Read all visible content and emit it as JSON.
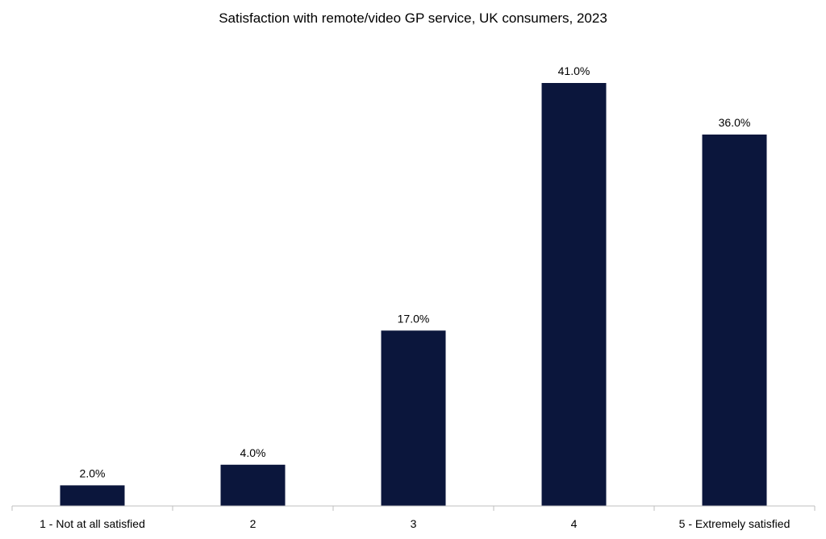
{
  "chart_data": {
    "type": "bar",
    "title": "Satisfaction with remote/video GP service, UK consumers, 2023",
    "categories": [
      "1 - Not at all satisfied",
      "2",
      "3",
      "4",
      "5 - Extremely satisfied"
    ],
    "values": [
      2.0,
      4.0,
      17.0,
      41.0,
      36.0
    ],
    "value_labels": [
      "2.0%",
      "4.0%",
      "17.0%",
      "41.0%",
      "36.0%"
    ],
    "xlabel": "",
    "ylabel": "",
    "ylim": [
      0,
      41
    ],
    "grid": false,
    "legend": "none",
    "colors": {
      "bar": "#0b163c",
      "axis": "#bfbfbf"
    }
  }
}
